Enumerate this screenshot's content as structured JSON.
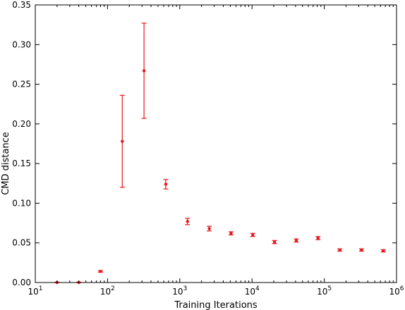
{
  "chart_data": {
    "type": "scatter",
    "title": "",
    "xlabel": "Training Iterations",
    "ylabel": "CMD distance",
    "xscale": "log",
    "xlim": [
      10,
      1000000
    ],
    "ylim": [
      0,
      0.35
    ],
    "grid": false,
    "legend": "none",
    "color": "#e8161b",
    "x_ticks": [
      {
        "value": 10,
        "base": "10",
        "exp": "1"
      },
      {
        "value": 100,
        "base": "10",
        "exp": "2"
      },
      {
        "value": 1000,
        "base": "10",
        "exp": "3"
      },
      {
        "value": 10000,
        "base": "10",
        "exp": "4"
      },
      {
        "value": 100000,
        "base": "10",
        "exp": "5"
      },
      {
        "value": 1000000,
        "base": "10",
        "exp": "6"
      }
    ],
    "y_ticks": [
      {
        "value": 0.0,
        "label": "0.00"
      },
      {
        "value": 0.05,
        "label": "0.05"
      },
      {
        "value": 0.1,
        "label": "0.10"
      },
      {
        "value": 0.15,
        "label": "0.15"
      },
      {
        "value": 0.2,
        "label": "0.20"
      },
      {
        "value": 0.25,
        "label": "0.25"
      },
      {
        "value": 0.3,
        "label": "0.30"
      },
      {
        "value": 0.35,
        "label": "0.35"
      }
    ],
    "points": [
      {
        "x": 20,
        "y": 0.0,
        "err": 0.0005
      },
      {
        "x": 40,
        "y": 0.0,
        "err": 0.0005
      },
      {
        "x": 80,
        "y": 0.014,
        "err": 0.001
      },
      {
        "x": 160,
        "y": 0.178,
        "err": 0.058
      },
      {
        "x": 320,
        "y": 0.267,
        "err": 0.06
      },
      {
        "x": 640,
        "y": 0.124,
        "err": 0.006
      },
      {
        "x": 1280,
        "y": 0.077,
        "err": 0.004
      },
      {
        "x": 2560,
        "y": 0.068,
        "err": 0.003
      },
      {
        "x": 5120,
        "y": 0.062,
        "err": 0.002
      },
      {
        "x": 10240,
        "y": 0.06,
        "err": 0.002
      },
      {
        "x": 20480,
        "y": 0.051,
        "err": 0.002
      },
      {
        "x": 40960,
        "y": 0.053,
        "err": 0.002
      },
      {
        "x": 81920,
        "y": 0.056,
        "err": 0.002
      },
      {
        "x": 163840,
        "y": 0.041,
        "err": 0.0015
      },
      {
        "x": 327680,
        "y": 0.041,
        "err": 0.0015
      },
      {
        "x": 655360,
        "y": 0.04,
        "err": 0.0015
      }
    ]
  }
}
